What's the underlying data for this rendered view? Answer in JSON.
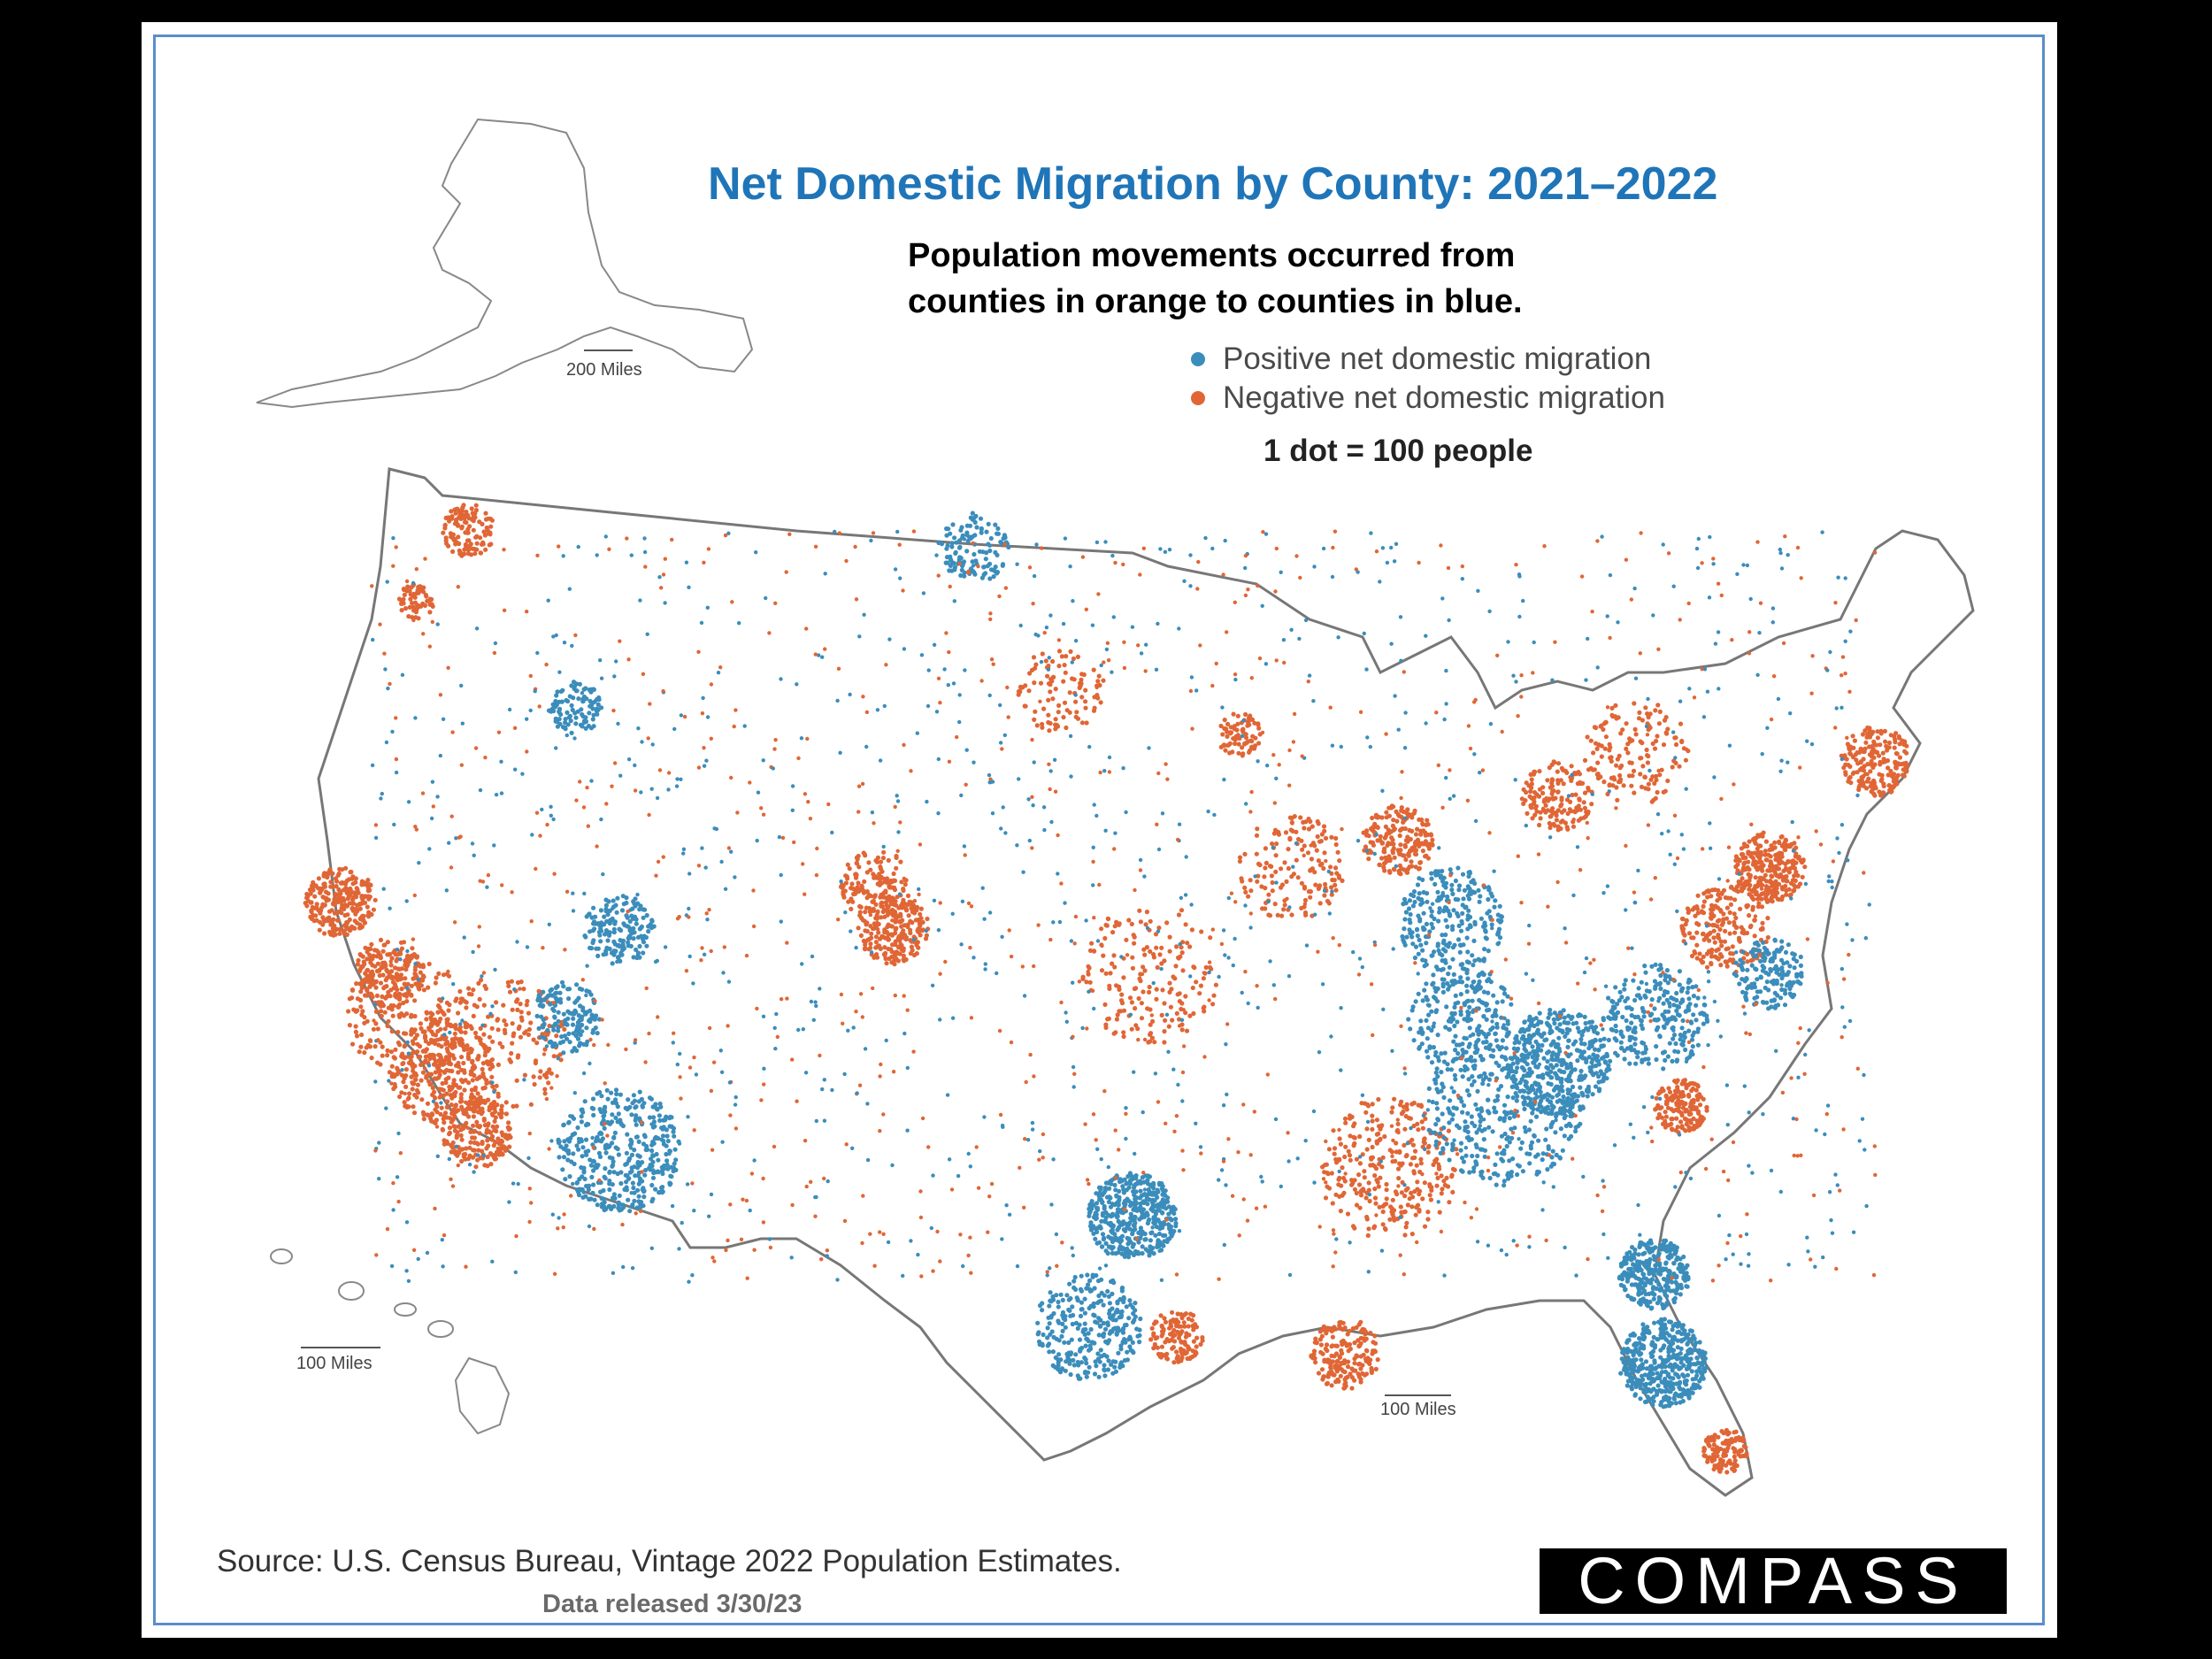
{
  "title": "Net Domestic Migration by County: 2021–2022",
  "subtitle_line1": "Population movements occurred from",
  "subtitle_line2": "counties in orange to counties in blue.",
  "legend": {
    "positive_label": "Positive net domestic migration",
    "negative_label": "Negative net domestic migration",
    "dot_scale": "1 dot = 100 people",
    "positive_color": "#3b8dbb",
    "negative_color": "#e06636"
  },
  "scale_bars": {
    "alaska": "200 Miles",
    "hawaii": "100 Miles",
    "conus": "100 Miles"
  },
  "source": "Source: U.S. Census Bureau, Vintage 2022 Population Estimates.",
  "released": "Data released 3/30/23",
  "logo_text": "COMPASS"
}
